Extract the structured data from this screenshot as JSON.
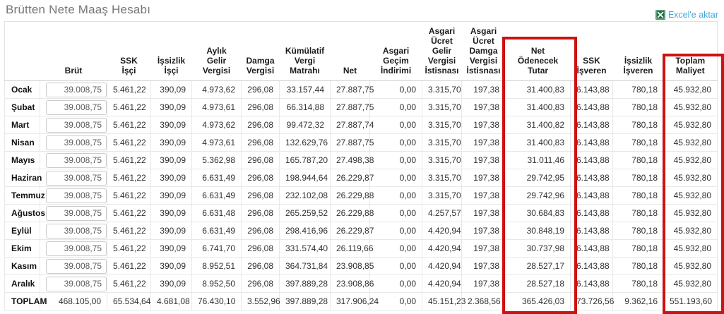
{
  "page": {
    "title": "Brütten Nete Maaş Hesabı",
    "export_label": "Excel'e aktar"
  },
  "colors": {
    "title_gray": "#76767b",
    "link_blue": "#41a8da",
    "excel_green": "#1e7145",
    "highlight_red": "#ce1111"
  },
  "table": {
    "columns": [
      {
        "key": "month",
        "label": ""
      },
      {
        "key": "brut",
        "label": "Brüt"
      },
      {
        "key": "ssk_isci",
        "label": "SSK\nİşçi"
      },
      {
        "key": "issizlik_isci",
        "label": "İşsizlik\nİşçi"
      },
      {
        "key": "aylik_gelir_vergisi",
        "label": "Aylık\nGelir\nVergisi"
      },
      {
        "key": "damga_vergisi",
        "label": "Damga\nVergisi"
      },
      {
        "key": "kumulatif_vergi_matrahi",
        "label": "Kümülatif\nVergi\nMatrahı"
      },
      {
        "key": "net",
        "label": "Net"
      },
      {
        "key": "asgari_gecim_indirimi",
        "label": "Asgari\nGeçim\nİndirimi"
      },
      {
        "key": "asgari_ucret_gelir_vergisi_istisnasi",
        "label": "Asgari\nÜcret\nGelir\nVergisi\nİstisnası"
      },
      {
        "key": "asgari_ucret_damga_vergisi_istisnasi",
        "label": "Asgari\nÜcret\nDamga\nVergisi\nİstisnası"
      },
      {
        "key": "net_odenecek_tutar",
        "label": "Net\nÖdenecek\nTutar"
      },
      {
        "key": "ssk_isveren",
        "label": "SSK\nİşveren"
      },
      {
        "key": "issizlik_isveren",
        "label": "İşsizlik\nİşveren"
      },
      {
        "key": "toplam_maliyet",
        "label": "Toplam\nMaliyet"
      }
    ],
    "value_keys": [
      "ssk_isci",
      "issizlik_isci",
      "aylik_gelir_vergisi",
      "damga_vergisi",
      "kumulatif_vergi_matrahi",
      "net",
      "asgari_gecim_indirimi",
      "asgari_ucret_gelir_vergisi_istisnasi",
      "asgari_ucret_damga_vergisi_istisnasi",
      "net_odenecek_tutar",
      "ssk_isveren",
      "issizlik_isveren",
      "toplam_maliyet"
    ],
    "rows": [
      {
        "month": "Ocak",
        "brut": "39.008,75",
        "values": [
          "5.461,22",
          "390,09",
          "4.973,62",
          "296,08",
          "33.157,44",
          "27.887,75",
          "0,00",
          "3.315,70",
          "197,38",
          "31.400,83",
          "6.143,88",
          "780,18",
          "45.932,80"
        ]
      },
      {
        "month": "Şubat",
        "brut": "39.008,75",
        "values": [
          "5.461,22",
          "390,09",
          "4.973,61",
          "296,08",
          "66.314,88",
          "27.887,75",
          "0,00",
          "3.315,70",
          "197,38",
          "31.400,83",
          "6.143,88",
          "780,18",
          "45.932,80"
        ]
      },
      {
        "month": "Mart",
        "brut": "39.008,75",
        "values": [
          "5.461,22",
          "390,09",
          "4.973,62",
          "296,08",
          "99.472,32",
          "27.887,74",
          "0,00",
          "3.315,70",
          "197,38",
          "31.400,82",
          "6.143,88",
          "780,18",
          "45.932,80"
        ]
      },
      {
        "month": "Nisan",
        "brut": "39.008,75",
        "values": [
          "5.461,22",
          "390,09",
          "4.973,61",
          "296,08",
          "132.629,76",
          "27.887,75",
          "0,00",
          "3.315,70",
          "197,38",
          "31.400,83",
          "6.143,88",
          "780,18",
          "45.932,80"
        ]
      },
      {
        "month": "Mayıs",
        "brut": "39.008,75",
        "values": [
          "5.461,22",
          "390,09",
          "5.362,98",
          "296,08",
          "165.787,20",
          "27.498,38",
          "0,00",
          "3.315,70",
          "197,38",
          "31.011,46",
          "6.143,88",
          "780,18",
          "45.932,80"
        ]
      },
      {
        "month": "Haziran",
        "brut": "39.008,75",
        "values": [
          "5.461,22",
          "390,09",
          "6.631,49",
          "296,08",
          "198.944,64",
          "26.229,87",
          "0,00",
          "3.315,70",
          "197,38",
          "29.742,95",
          "6.143,88",
          "780,18",
          "45.932,80"
        ]
      },
      {
        "month": "Temmuz",
        "brut": "39.008,75",
        "values": [
          "5.461,22",
          "390,09",
          "6.631,49",
          "296,08",
          "232.102,08",
          "26.229,88",
          "0,00",
          "3.315,70",
          "197,38",
          "29.742,96",
          "6.143,88",
          "780,18",
          "45.932,80"
        ]
      },
      {
        "month": "Ağustos",
        "brut": "39.008,75",
        "values": [
          "5.461,22",
          "390,09",
          "6.631,48",
          "296,08",
          "265.259,52",
          "26.229,88",
          "0,00",
          "4.257,57",
          "197,38",
          "30.684,83",
          "6.143,88",
          "780,18",
          "45.932,80"
        ]
      },
      {
        "month": "Eylül",
        "brut": "39.008,75",
        "values": [
          "5.461,22",
          "390,09",
          "6.631,49",
          "296,08",
          "298.416,96",
          "26.229,87",
          "0,00",
          "4.420,94",
          "197,38",
          "30.848,19",
          "6.143,88",
          "780,18",
          "45.932,80"
        ]
      },
      {
        "month": "Ekim",
        "brut": "39.008,75",
        "values": [
          "5.461,22",
          "390,09",
          "6.741,70",
          "296,08",
          "331.574,40",
          "26.119,66",
          "0,00",
          "4.420,94",
          "197,38",
          "30.737,98",
          "6.143,88",
          "780,18",
          "45.932,80"
        ]
      },
      {
        "month": "Kasım",
        "brut": "39.008,75",
        "values": [
          "5.461,22",
          "390,09",
          "8.952,51",
          "296,08",
          "364.731,84",
          "23.908,85",
          "0,00",
          "4.420,94",
          "197,38",
          "28.527,17",
          "6.143,88",
          "780,18",
          "45.932,80"
        ]
      },
      {
        "month": "Aralık",
        "brut": "39.008,75",
        "values": [
          "5.461,22",
          "390,09",
          "8.952,50",
          "296,08",
          "397.889,28",
          "23.908,86",
          "0,00",
          "4.420,94",
          "197,38",
          "28.527,18",
          "6.143,88",
          "780,18",
          "45.932,80"
        ]
      },
      {
        "month": "TOPLAM",
        "total": true,
        "brut": "468.105,00",
        "values": [
          "65.534,64",
          "4.681,08",
          "76.430,10",
          "3.552,96",
          "397.889,28",
          "317.906,24",
          "0,00",
          "45.151,23",
          "2.368,56",
          "365.426,03",
          "73.726,56",
          "9.362,16",
          "551.193,60"
        ]
      }
    ]
  }
}
